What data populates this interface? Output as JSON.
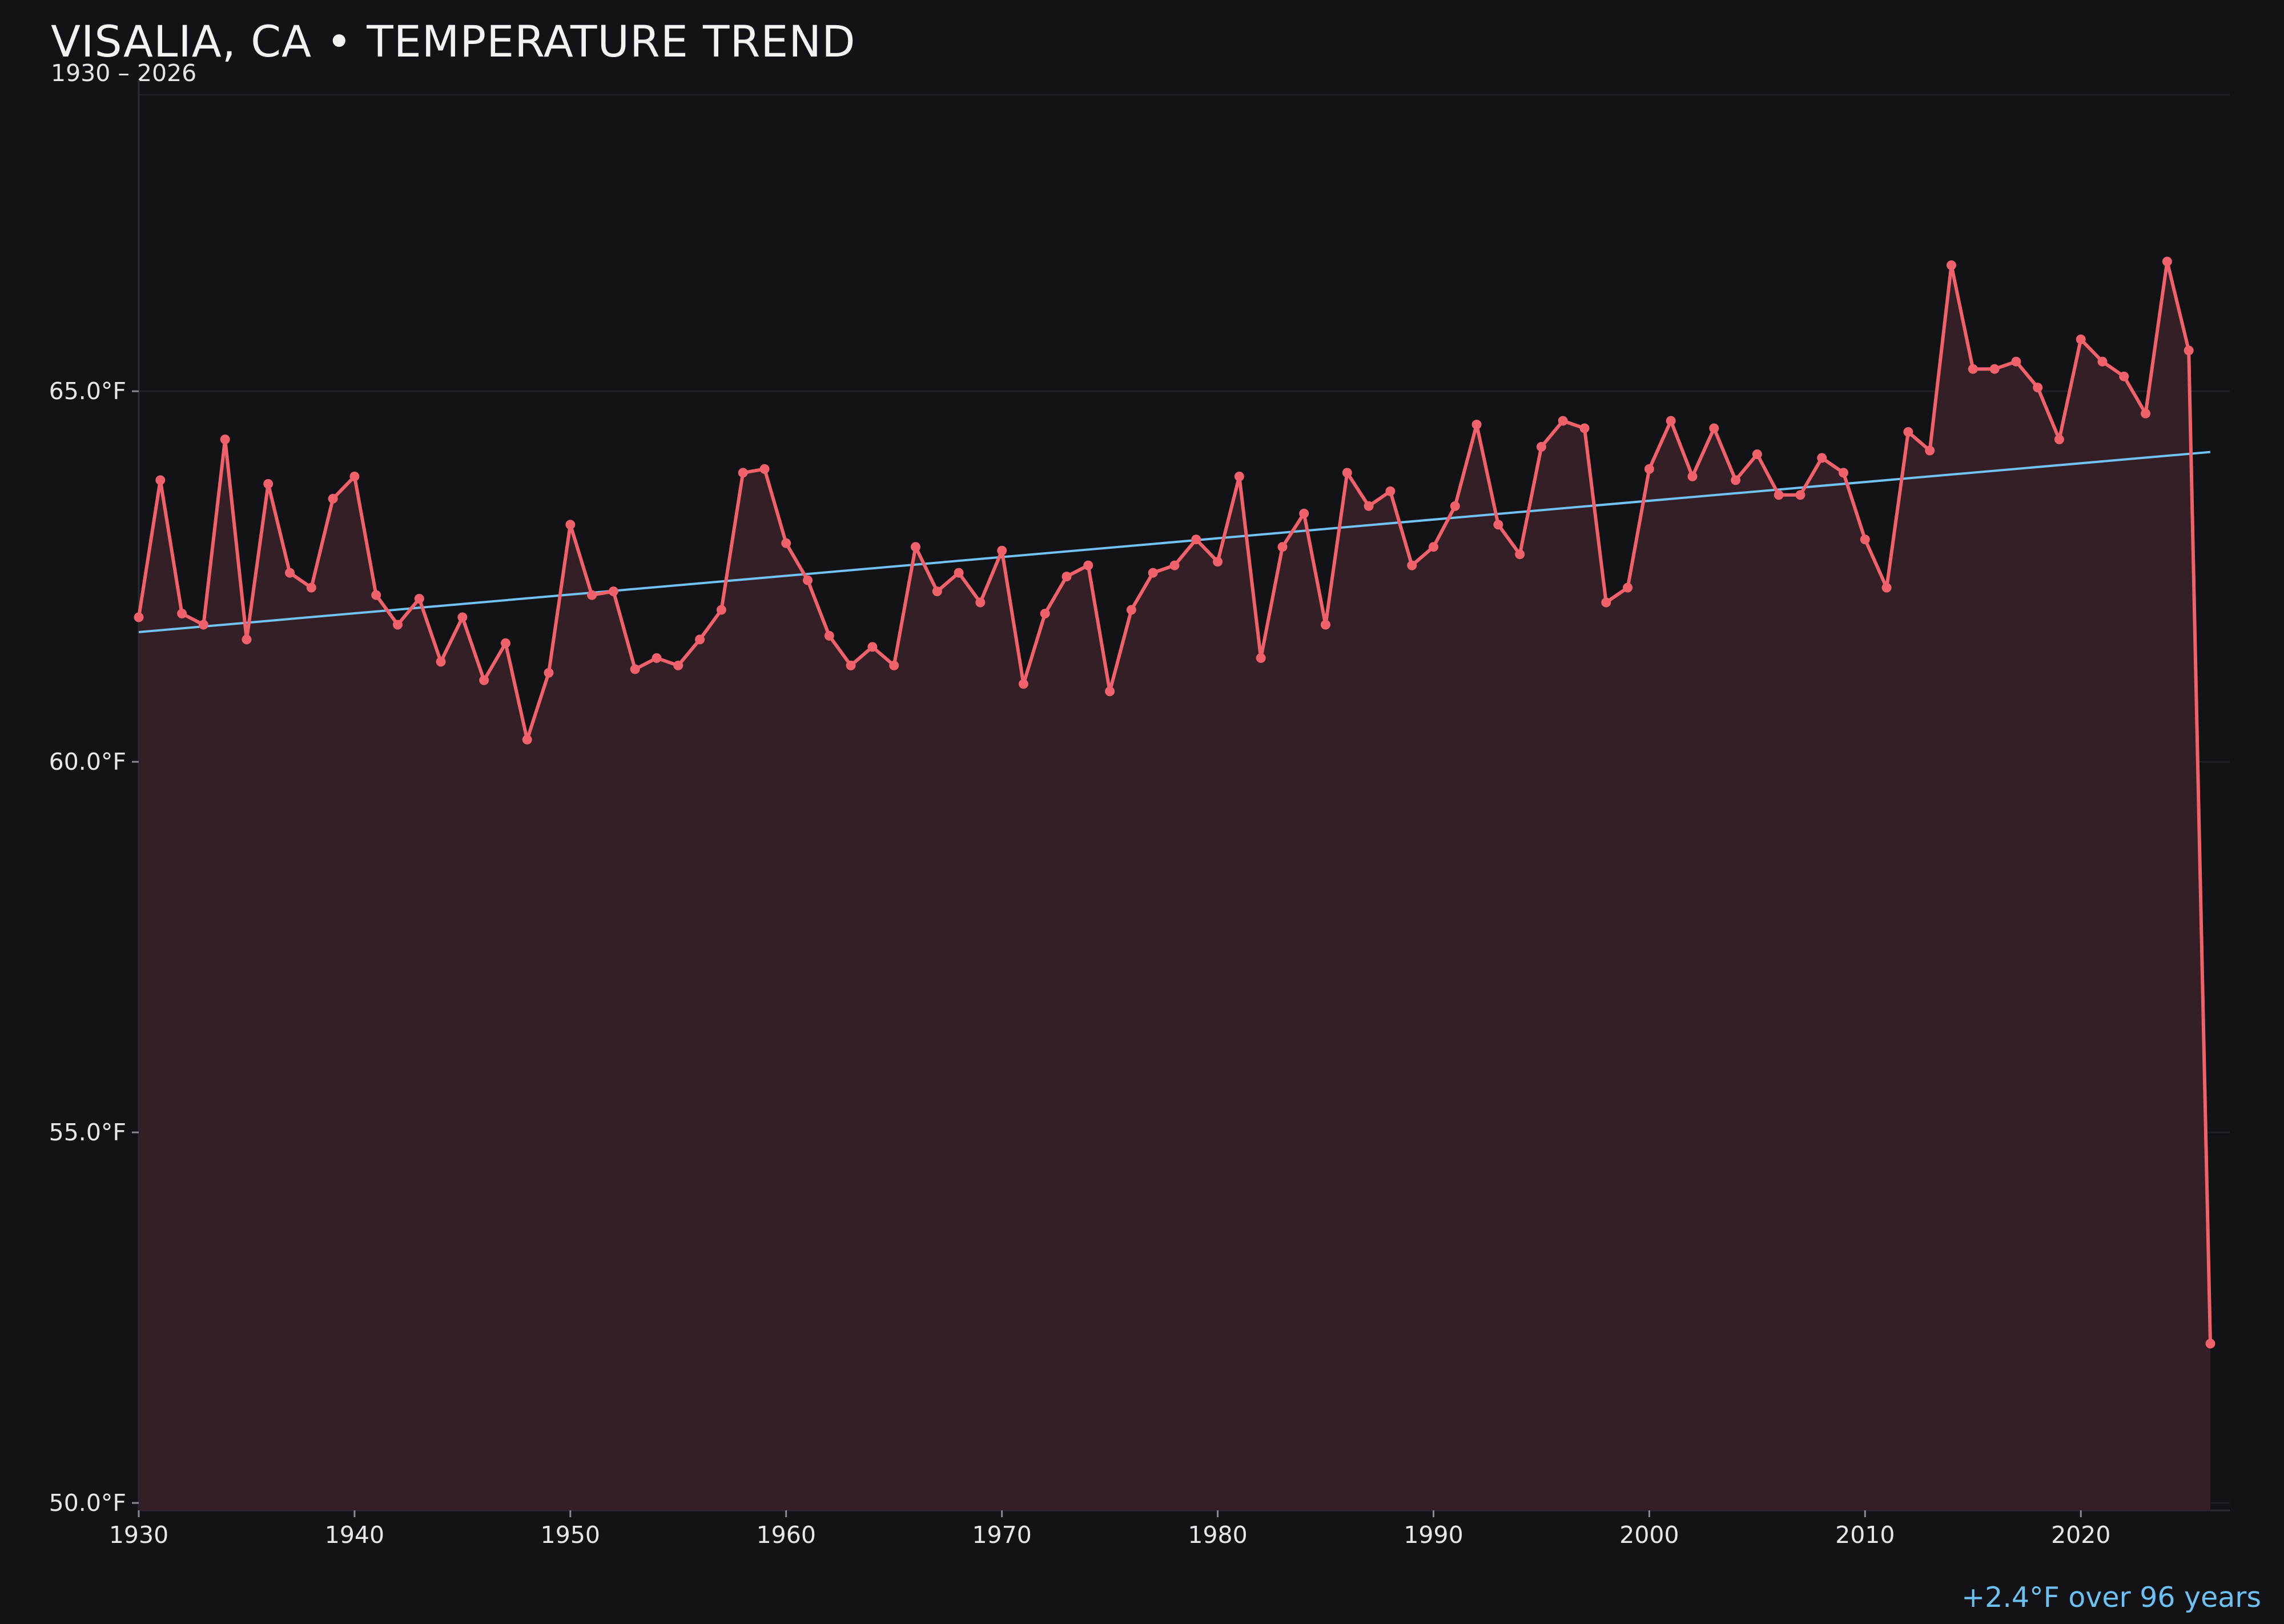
{
  "chart_data": {
    "type": "line",
    "title": "VISALIA, CA • TEMPERATURE TREND",
    "subtitle": "1930 – 2026",
    "xlabel": "",
    "ylabel": "",
    "xlim": [
      1930,
      2026.9
    ],
    "ylim": [
      49.9,
      69.2
    ],
    "x_ticks": [
      1930,
      1940,
      1950,
      1960,
      1970,
      1980,
      1990,
      2000,
      2010,
      2020
    ],
    "y_ticks": [
      {
        "value": 50,
        "label": "50.0°F"
      },
      {
        "value": 55,
        "label": "55.0°F"
      },
      {
        "value": 60,
        "label": "60.0°F"
      },
      {
        "value": 65,
        "label": "65.0°F"
      }
    ],
    "grid": true,
    "series": [
      {
        "name": "",
        "color": "#f0626b",
        "x": [
          1930,
          1931,
          1932,
          1933,
          1934,
          1935,
          1936,
          1937,
          1938,
          1939,
          1940,
          1941,
          1942,
          1943,
          1944,
          1945,
          1946,
          1947,
          1948,
          1949,
          1950,
          1951,
          1952,
          1953,
          1954,
          1955,
          1956,
          1957,
          1958,
          1959,
          1960,
          1961,
          1962,
          1963,
          1964,
          1965,
          1966,
          1967,
          1968,
          1969,
          1970,
          1971,
          1972,
          1973,
          1974,
          1975,
          1976,
          1977,
          1978,
          1979,
          1980,
          1981,
          1982,
          1983,
          1984,
          1985,
          1986,
          1987,
          1988,
          1989,
          1990,
          1991,
          1992,
          1993,
          1994,
          1995,
          1996,
          1997,
          1998,
          1999,
          2000,
          2001,
          2002,
          2003,
          2004,
          2005,
          2006,
          2007,
          2008,
          2009,
          2010,
          2011,
          2012,
          2013,
          2014,
          2015,
          2016,
          2017,
          2018,
          2019,
          2020,
          2021,
          2022,
          2023,
          2024,
          2025,
          2026
        ],
        "values": [
          61.95,
          63.8,
          62.0,
          61.85,
          64.35,
          61.65,
          63.75,
          62.55,
          62.35,
          63.55,
          63.85,
          62.25,
          61.85,
          62.2,
          61.35,
          61.95,
          61.1,
          61.6,
          60.3,
          61.2,
          63.2,
          62.25,
          62.3,
          61.25,
          61.4,
          61.3,
          61.65,
          62.05,
          63.9,
          63.95,
          62.95,
          62.45,
          61.7,
          61.3,
          61.55,
          61.3,
          62.9,
          62.3,
          62.55,
          62.15,
          62.85,
          61.05,
          62.0,
          62.5,
          62.65,
          60.95,
          62.05,
          62.55,
          62.65,
          63.0,
          62.7,
          63.85,
          61.4,
          62.9,
          63.35,
          61.85,
          63.9,
          63.45,
          63.65,
          62.65,
          62.9,
          63.45,
          64.55,
          63.2,
          62.8,
          64.25,
          64.6,
          64.5,
          62.15,
          62.35,
          63.95,
          64.6,
          63.85,
          64.5,
          63.8,
          64.15,
          63.6,
          63.6,
          64.1,
          63.9,
          63.0,
          62.35,
          64.45,
          64.2,
          66.7,
          65.3,
          65.3,
          65.4,
          65.05,
          64.35,
          65.7,
          65.4,
          65.2,
          64.7,
          66.75,
          65.55,
          52.15
        ]
      }
    ],
    "trend": {
      "color": "#72c2f2",
      "start": {
        "x": 1930,
        "y": 61.75
      },
      "end": {
        "x": 2026,
        "y": 64.18
      },
      "label": "+2.4°F over 96 years"
    }
  }
}
